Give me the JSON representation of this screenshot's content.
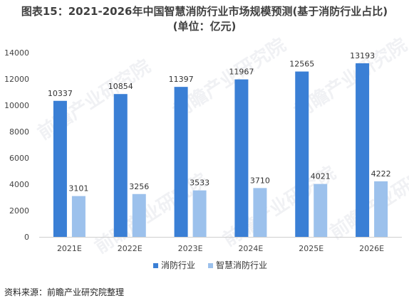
{
  "title_line1": "图表15：2021-2026年中国智慧消防行业市场规模预测(基于消防行业占比)",
  "title_line2": "(单位：亿元)",
  "source": "资料来源：前瞻产业研究院整理",
  "watermark": "前瞻产业研究院",
  "chart_data": {
    "type": "bar",
    "title": "图表15：2021-2026年中国智慧消防行业市场规模预测(基于消防行业占比)",
    "subtitle": "(单位：亿元)",
    "categories": [
      "2021E",
      "2022E",
      "2023E",
      "2024E",
      "2025E",
      "2026E"
    ],
    "series": [
      {
        "name": "消防行业",
        "values": [
          10337,
          10854,
          11397,
          11967,
          12565,
          13193
        ],
        "color": "#3a7fd5"
      },
      {
        "name": "智慧消防行业",
        "values": [
          3101,
          3256,
          3533,
          3710,
          4021,
          4222
        ],
        "color": "#9cc1ec"
      }
    ],
    "ylim": [
      0,
      14000
    ],
    "yticks": [
      0,
      2000,
      4000,
      6000,
      8000,
      10000,
      12000,
      14000
    ],
    "grid": false,
    "legend_position": "bottom"
  }
}
